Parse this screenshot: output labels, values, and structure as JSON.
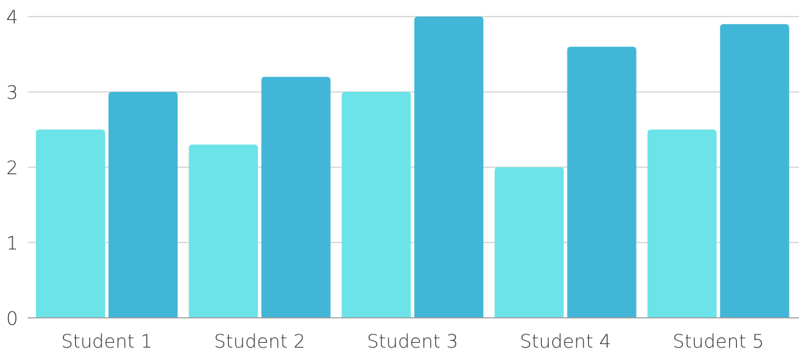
{
  "chart_data": {
    "type": "bar",
    "categories": [
      "Student 1",
      "Student 2",
      "Student 3",
      "Student 4",
      "Student 5"
    ],
    "series": [
      {
        "values": [
          2.5,
          2.3,
          3.0,
          2.0,
          2.5
        ],
        "color": "#6be3e8"
      },
      {
        "values": [
          3.0,
          3.2,
          4.0,
          3.6,
          3.9
        ],
        "color": "#42b6d6"
      }
    ],
    "yticks": [
      "0",
      "1",
      "2",
      "3",
      "4"
    ],
    "ylim": [
      0,
      4
    ],
    "grid": true,
    "legend": "none"
  }
}
